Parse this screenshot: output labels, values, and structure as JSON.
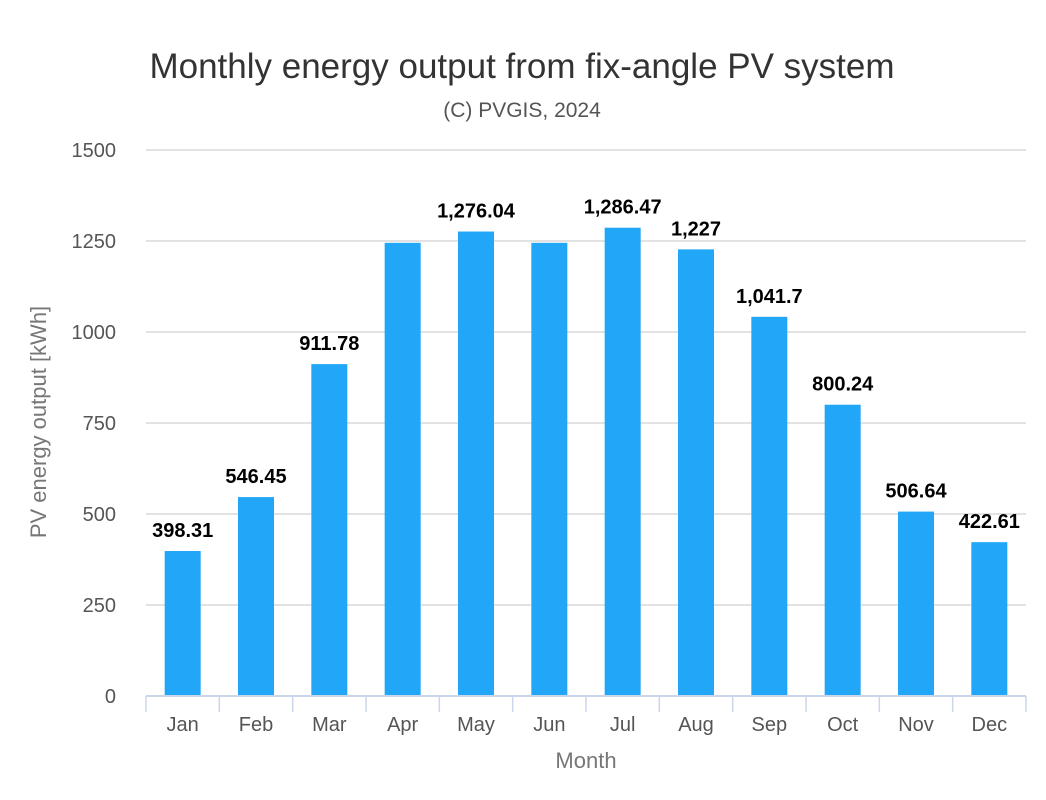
{
  "chart_data": {
    "type": "bar",
    "title": "Monthly energy output from fix-angle PV system",
    "subtitle": "(C) PVGIS, 2024",
    "xlabel": "Month",
    "ylabel": "PV energy output [kWh]",
    "ylim": [
      0,
      1500
    ],
    "yticks": [
      0,
      250,
      500,
      750,
      1000,
      1250,
      1500
    ],
    "grid": true,
    "categories": [
      "Jan",
      "Feb",
      "Mar",
      "Apr",
      "May",
      "Jun",
      "Jul",
      "Aug",
      "Sep",
      "Oct",
      "Nov",
      "Dec"
    ],
    "values": [
      398.31,
      546.45,
      911.78,
      1245,
      1276.04,
      1245,
      1286.47,
      1227,
      1041.7,
      800.24,
      506.64,
      422.61
    ],
    "data_labels": [
      "398.31",
      "546.45",
      "911.78",
      "",
      "1,276.04",
      "",
      "1,286.47",
      "1,227",
      "1,041.7",
      "800.24",
      "506.64",
      "422.61"
    ],
    "bar_color": "#22a7f8"
  }
}
